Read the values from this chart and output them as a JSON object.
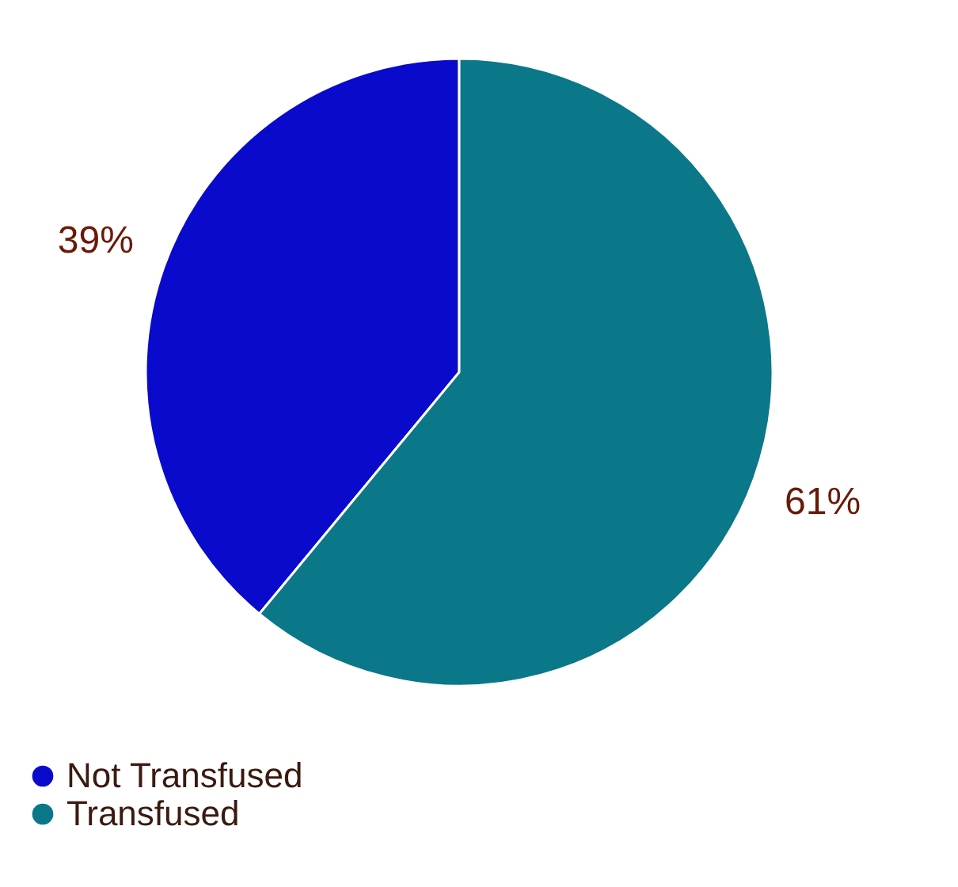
{
  "chart_data": {
    "type": "pie",
    "categories": [
      "Not Transfused",
      "Transfused"
    ],
    "values": [
      39,
      61
    ],
    "colors": [
      "#0a0acc",
      "#0a7888"
    ],
    "value_labels": [
      "39%",
      "61%"
    ],
    "legend": "bottom"
  }
}
